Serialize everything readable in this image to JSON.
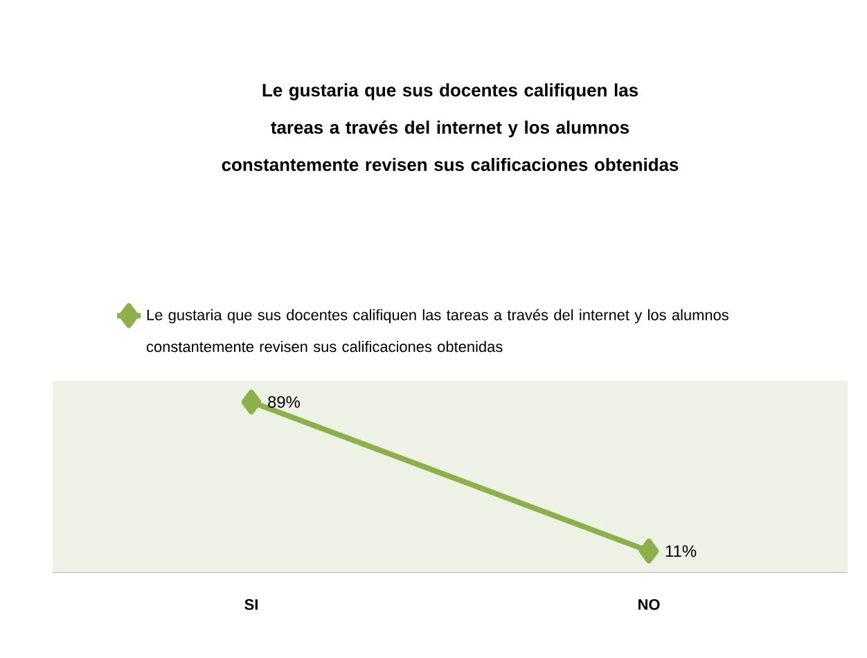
{
  "chart_data": {
    "type": "line",
    "title": "Le gustaria que sus docentes califiquen las tareas a través del internet y los alumnos constantemente revisen sus calificaciones obtenidas",
    "categories": [
      "SI",
      "NO"
    ],
    "series": [
      {
        "name": "Le gustaria que sus docentes califiquen las tareas a través del internet y los alumnos constantemente revisen sus calificaciones obtenidas",
        "color": "#8db14a",
        "values": [
          89,
          11
        ],
        "value_labels": [
          "89%",
          "11%"
        ]
      }
    ],
    "ylim": [
      0,
      100
    ],
    "marker": "diamond",
    "line_style": "solid",
    "legend": "top"
  }
}
